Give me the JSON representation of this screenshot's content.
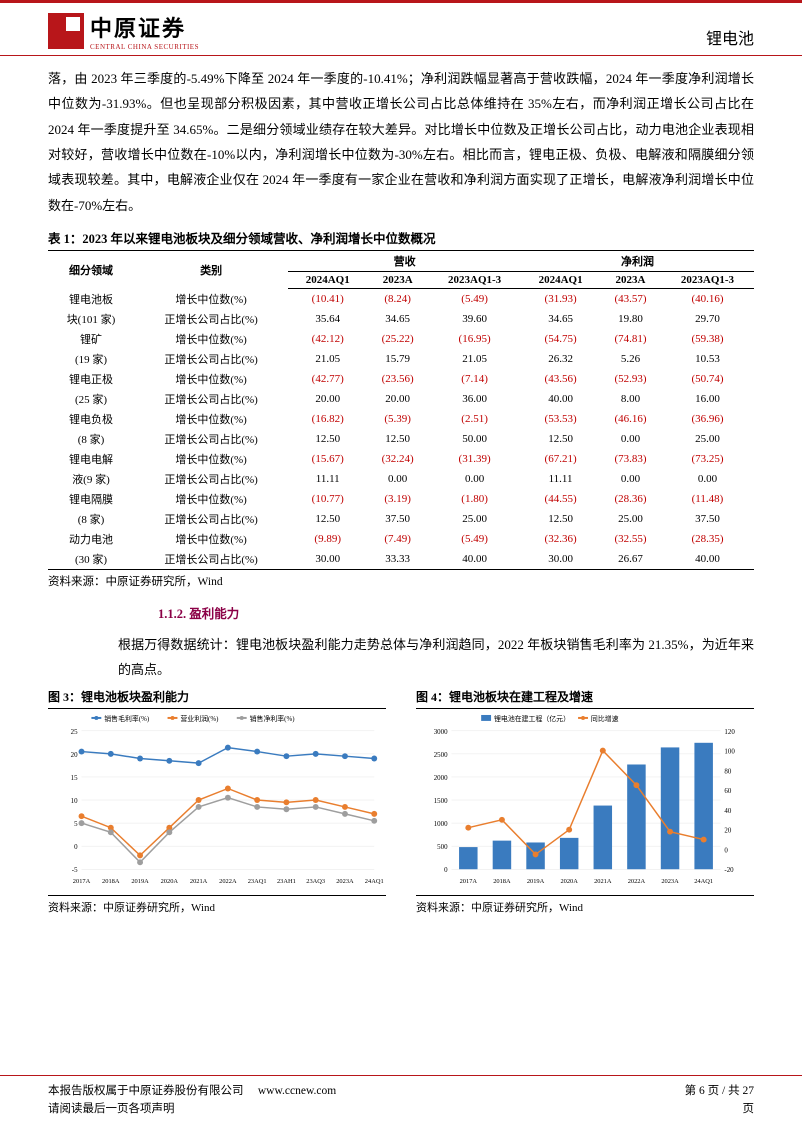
{
  "header": {
    "logo_cn": "中原证券",
    "logo_en": "CENTRAL CHINA SECURITIES",
    "section_title": "锂电池"
  },
  "body_text": {
    "p1": "落，由 2023 年三季度的-5.49%下降至 2024 年一季度的-10.41%；净利润跌幅显著高于营收跌幅，2024 年一季度净利润增长中位数为-31.93%。但也呈现部分积极因素，其中营收正增长公司占比总体维持在 35%左右，而净利润正增长公司占比在 2024 年一季度提升至 34.65%。二是细分领域业绩存在较大差异。对比增长中位数及正增长公司占比，动力电池企业表现相对较好，营收增长中位数在-10%以内，净利润增长中位数为-30%左右。相比而言，锂电正极、负极、电解液和隔膜细分领域表现较差。其中，电解液企业仅在 2024 年一季度有一家企业在营收和净利润方面实现了正增长，电解液净利润增长中位数在-70%左右。",
    "p2": "根据万得数据统计：锂电池板块盈利能力走势总体与净利润趋同，2022 年板块销售毛利率为 21.35%，为近年来的高点。"
  },
  "table": {
    "title": "表 1：2023 年以来锂电池板块及细分领域营收、净利润增长中位数概况",
    "header_group1": "营收",
    "header_group2": "净利润",
    "col_seg": "细分领域",
    "col_type": "类别",
    "periods": [
      "2024AQ1",
      "2023A",
      "2023AQ1-3"
    ],
    "type_median": "增长中位数(%)",
    "type_pos": "正增长公司占比(%)",
    "segments": [
      {
        "name_l1": "锂电池板",
        "name_l2": "块(101 家)",
        "rev_median": [
          "(10.41)",
          "(8.24)",
          "(5.49)"
        ],
        "rev_pos": [
          "35.64",
          "34.65",
          "39.60"
        ],
        "np_median": [
          "(31.93)",
          "(43.57)",
          "(40.16)"
        ],
        "np_pos": [
          "34.65",
          "19.80",
          "29.70"
        ]
      },
      {
        "name_l1": "锂矿",
        "name_l2": "(19 家)",
        "rev_median": [
          "(42.12)",
          "(25.22)",
          "(16.95)"
        ],
        "rev_pos": [
          "21.05",
          "15.79",
          "21.05"
        ],
        "np_median": [
          "(54.75)",
          "(74.81)",
          "(59.38)"
        ],
        "np_pos": [
          "26.32",
          "5.26",
          "10.53"
        ]
      },
      {
        "name_l1": "锂电正极",
        "name_l2": "(25 家)",
        "rev_median": [
          "(42.77)",
          "(23.56)",
          "(7.14)"
        ],
        "rev_pos": [
          "20.00",
          "20.00",
          "36.00"
        ],
        "np_median": [
          "(43.56)",
          "(52.93)",
          "(50.74)"
        ],
        "np_pos": [
          "40.00",
          "8.00",
          "16.00"
        ]
      },
      {
        "name_l1": "锂电负极",
        "name_l2": "(8 家)",
        "rev_median": [
          "(16.82)",
          "(5.39)",
          "(2.51)"
        ],
        "rev_pos": [
          "12.50",
          "12.50",
          "50.00"
        ],
        "np_median": [
          "(53.53)",
          "(46.16)",
          "(36.96)"
        ],
        "np_pos": [
          "12.50",
          "0.00",
          "25.00"
        ]
      },
      {
        "name_l1": "锂电电解",
        "name_l2": "液(9 家)",
        "rev_median": [
          "(15.67)",
          "(32.24)",
          "(31.39)"
        ],
        "rev_pos": [
          "11.11",
          "0.00",
          "0.00"
        ],
        "np_median": [
          "(67.21)",
          "(73.83)",
          "(73.25)"
        ],
        "np_pos": [
          "11.11",
          "0.00",
          "0.00"
        ]
      },
      {
        "name_l1": "锂电隔膜",
        "name_l2": "(8 家)",
        "rev_median": [
          "(10.77)",
          "(3.19)",
          "(1.80)"
        ],
        "rev_pos": [
          "12.50",
          "37.50",
          "25.00"
        ],
        "np_median": [
          "(44.55)",
          "(28.36)",
          "(11.48)"
        ],
        "np_pos": [
          "12.50",
          "25.00",
          "37.50"
        ]
      },
      {
        "name_l1": "动力电池",
        "name_l2": "(30 家)",
        "rev_median": [
          "(9.89)",
          "(7.49)",
          "(5.49)"
        ],
        "rev_pos": [
          "30.00",
          "33.33",
          "40.00"
        ],
        "np_median": [
          "(32.36)",
          "(32.55)",
          "(28.35)"
        ],
        "np_pos": [
          "30.00",
          "26.67",
          "40.00"
        ]
      }
    ],
    "source_label": "资料来源：中原证券研究所，Wind"
  },
  "subhead_112": "1.1.2. 盈利能力",
  "chart3": {
    "title": "图 3：锂电池板块盈利能力",
    "type": "line",
    "legend": [
      "销售毛利率(%)",
      "营业利润(%)",
      "销售净利率(%)"
    ],
    "x": [
      "2017A",
      "2018A",
      "2019A",
      "2020A",
      "2021A",
      "2022A",
      "23AQ1",
      "23AH1",
      "23AQ3",
      "2023A",
      "24AQ1"
    ],
    "series": [
      {
        "name": "销售毛利率(%)",
        "color": "#3a7bbf",
        "marker": "circle",
        "values": [
          20.5,
          20,
          19,
          18.5,
          18,
          21.35,
          20.5,
          19.5,
          20,
          19.5,
          19
        ]
      },
      {
        "name": "营业利润(%)",
        "color": "#e97e2e",
        "marker": "circle",
        "values": [
          6.5,
          4,
          -2,
          4,
          10,
          12.5,
          10,
          9.5,
          10,
          8.5,
          7
        ]
      },
      {
        "name": "销售净利率(%)",
        "color": "#9e9e9e",
        "marker": "circle",
        "values": [
          5,
          3,
          -3.5,
          3,
          8.5,
          10.5,
          8.5,
          8,
          8.5,
          7,
          5.5
        ]
      }
    ],
    "ylim": [
      -5,
      25
    ],
    "ytick_step": 5,
    "grid_color": "#e6e6e6",
    "background_color": "#ffffff",
    "axis_fontsize": 7,
    "line_width": 1.5,
    "marker_size": 3,
    "source": "资料来源：中原证券研究所，Wind"
  },
  "chart4": {
    "title": "图 4：锂电池板块在建工程及增速",
    "type": "bar-line",
    "legend": [
      "锂电池在建工程（亿元）",
      "同比增速"
    ],
    "x": [
      "2017A",
      "2018A",
      "2019A",
      "2020A",
      "2021A",
      "2022A",
      "2023A",
      "24AQ1"
    ],
    "bars": {
      "name": "锂电池在建工程（亿元）",
      "color": "#3a7bbf",
      "values": [
        480,
        620,
        580,
        680,
        1380,
        2270,
        2640,
        2740
      ]
    },
    "line": {
      "name": "同比增速",
      "color": "#e97e2e",
      "marker": "circle",
      "values": [
        22,
        30,
        -5,
        20,
        100,
        65,
        18,
        10
      ]
    },
    "ylim_left": [
      0,
      3000
    ],
    "ytick_left_step": 500,
    "ylim_right": [
      -20,
      120
    ],
    "ytick_right_step": 20,
    "grid_color": "#e6e6e6",
    "background_color": "#ffffff",
    "axis_fontsize": 7,
    "bar_width": 0.55,
    "line_width": 1.5,
    "marker_size": 3,
    "source": "资料来源：中原证券研究所，Wind"
  },
  "footer": {
    "l1": "本报告版权属于中原证券股份有限公司",
    "url": "www.ccnew.com",
    "l2": "请阅读最后一页各项声明",
    "page_label": "第 6 页 / 共 27",
    "page_suffix": "页"
  },
  "colors": {
    "brand_red": "#b8161a",
    "heading_purple": "#8b0046",
    "negative": "#c00000"
  }
}
